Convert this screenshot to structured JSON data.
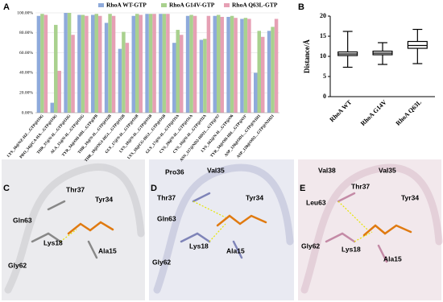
{
  "chart_data": [
    {
      "type": "bar",
      "panel": "A",
      "categories": [
        "LYS_16@NZ-HZ…GTP@O3G",
        "PRO_34@CA-HA…GTP@O3G",
        "THR_37@N-H…GTP@O2G",
        "ALA_15@N-H…GTP@O1G",
        "TYR_34@OH-HH…GTP@PB",
        "THR_19@N-H…GTP@O2B",
        "THR_19@OG1-HG1…GTP@O2B",
        "GLY_17@N-H…GTP@O1B",
        "LYS_18@N-H…GTP@O1B",
        "LYS_18@CG-HG2…GTP@O1B",
        "GLY_17@N-H…GTP@O3A",
        "CYS_20@N-H…GTP@O1A",
        "CYS_16@N-H…GTP@O2A",
        "ASN_117@ND2-HD21…GTP@N7",
        "LYS_162@N-H…GTP@O6",
        "TYR_34@OH-HH…GTP@O3'",
        "ASP_120@OD1…GTP@N1H1",
        "ASP_120@OD2…GTP@N2H21"
      ],
      "series": [
        {
          "name": "RhoA WT-GTP",
          "color": "#8eaadb",
          "values": [
            97,
            10,
            100,
            98,
            98,
            90,
            64,
            97,
            99,
            99,
            70,
            97,
            73,
            97,
            96,
            94,
            40,
            82
          ]
        },
        {
          "name": "RhoA G14V-GTP",
          "color": "#a9d18e",
          "values": [
            99,
            88,
            100,
            98,
            99,
            99,
            81,
            99,
            99,
            99,
            83,
            98,
            74,
            98,
            97,
            95,
            82,
            86
          ]
        },
        {
          "name": "RhoA Q63L-GTP",
          "color": "#e6a0b4",
          "values": [
            98,
            42,
            78,
            97,
            97,
            97,
            70,
            98,
            99,
            99,
            78,
            97,
            97,
            96,
            95,
            94,
            76,
            94
          ]
        }
      ],
      "ylim": [
        0,
        100
      ],
      "yticks": [
        {
          "value": 0,
          "label": "0.00%"
        },
        {
          "value": 20,
          "label": "20.00%"
        },
        {
          "value": 40,
          "label": "40.00%"
        },
        {
          "value": 60,
          "label": "60.00%"
        },
        {
          "value": 80,
          "label": "80.00%"
        },
        {
          "value": 100,
          "label": "100.00%"
        }
      ],
      "grid": true
    },
    {
      "type": "box",
      "panel": "B",
      "y_label": "Distance/Å",
      "categories": [
        "RhoA WT",
        "RhoA G14V",
        "RhoA Q63L"
      ],
      "boxes": [
        {
          "min": 7.3,
          "q1": 10.2,
          "median": 10.6,
          "q3": 11.1,
          "max": 16.2
        },
        {
          "min": 8,
          "q1": 10.4,
          "median": 10.8,
          "q3": 11.3,
          "max": 13.4
        },
        {
          "min": 8.2,
          "q1": 12,
          "median": 12.7,
          "q3": 13.7,
          "max": 16.7
        }
      ],
      "ylim": [
        0,
        20
      ],
      "yticks": [
        0,
        5,
        10,
        15,
        20
      ]
    }
  ],
  "structures": [
    {
      "panel": "C",
      "labels": [
        {
          "text": "Thr37",
          "color": "#c00000"
        },
        {
          "text": "Tyr34",
          "color": "#000"
        },
        {
          "text": "Gln63",
          "color": "#000"
        },
        {
          "text": "Lys18",
          "color": "#000"
        },
        {
          "text": "Ala15",
          "color": "#000"
        },
        {
          "text": "Gly62",
          "color": "#c00000"
        }
      ]
    },
    {
      "panel": "D",
      "labels": [
        {
          "text": "Pro36",
          "color": "#000"
        },
        {
          "text": "Val35",
          "color": "#000"
        },
        {
          "text": "Thr37",
          "color": "#c00000"
        },
        {
          "text": "Gln63",
          "color": "#000"
        },
        {
          "text": "Tyr34",
          "color": "#000"
        },
        {
          "text": "Gly62",
          "color": "#c00000"
        },
        {
          "text": "Lys18",
          "color": "#000"
        },
        {
          "text": "Ala15",
          "color": "#000"
        }
      ]
    },
    {
      "panel": "E",
      "labels": [
        {
          "text": "Val38",
          "color": "#000"
        },
        {
          "text": "Val35",
          "color": "#000"
        },
        {
          "text": "Thr37",
          "color": "#c00000"
        },
        {
          "text": "Leu63",
          "color": "#000"
        },
        {
          "text": "Tyr34",
          "color": "#000"
        },
        {
          "text": "Gly62",
          "color": "#c00000"
        },
        {
          "text": "Lys18",
          "color": "#000"
        },
        {
          "text": "Ala15",
          "color": "#000"
        }
      ]
    }
  ]
}
